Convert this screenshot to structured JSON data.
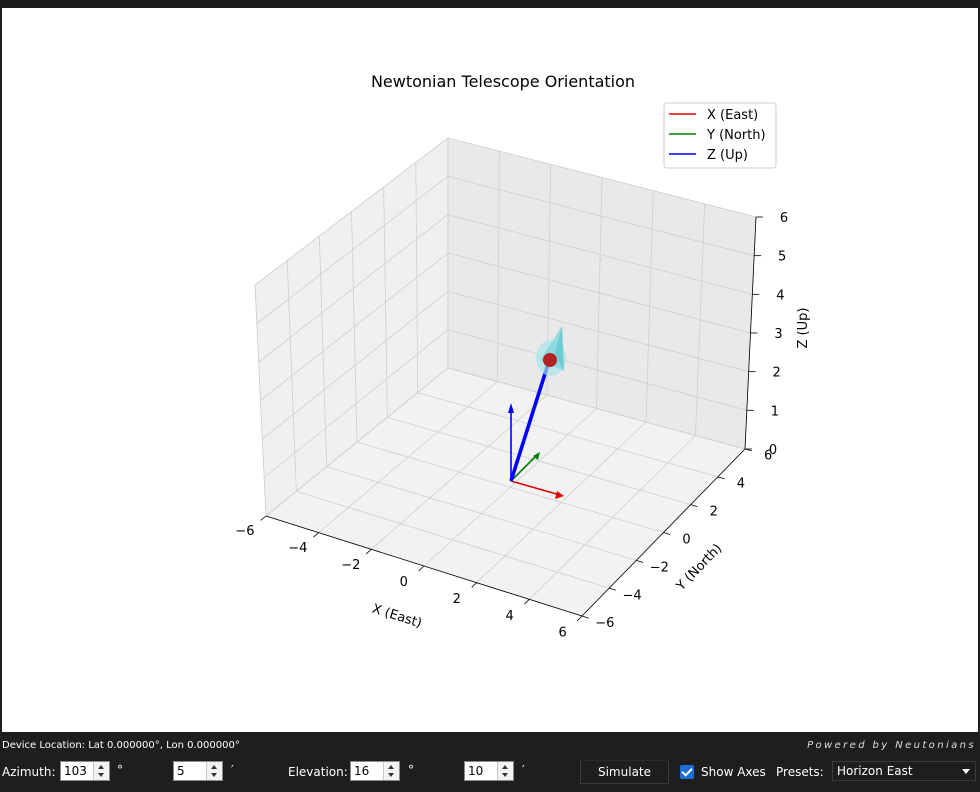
{
  "plot": {
    "title": "Newtonian Telescope Orientation",
    "xlabel": "X (East)",
    "ylabel": "Y (North)",
    "zlabel": "Z (Up)",
    "x_ticks": [
      "−6",
      "−4",
      "−2",
      "0",
      "2",
      "4",
      "6"
    ],
    "y_ticks": [
      "−6",
      "−4",
      "−2",
      "0",
      "2",
      "4",
      "6"
    ],
    "z_ticks": [
      "0",
      "1",
      "2",
      "3",
      "4",
      "5",
      "6"
    ],
    "legend": [
      {
        "label": "X (East)",
        "color": "#e00000"
      },
      {
        "label": "Y (North)",
        "color": "#008000"
      },
      {
        "label": "Z (Up)",
        "color": "#0000ff"
      }
    ]
  },
  "chart_data": {
    "type": "3d-vector",
    "title": "Newtonian Telescope Orientation",
    "xlabel": "X (East)",
    "ylabel": "Y (North)",
    "zlabel": "Z (Up)",
    "xlim": [
      -6,
      6
    ],
    "ylim": [
      -6,
      6
    ],
    "zlim": [
      0,
      6
    ],
    "grid": true,
    "legend_position": "top-right",
    "series": [
      {
        "name": "X (East)",
        "color": "#e00000",
        "from": [
          0,
          0,
          0
        ],
        "to": [
          2,
          0,
          0
        ]
      },
      {
        "name": "Y (North)",
        "color": "#008000",
        "from": [
          0,
          0,
          0
        ],
        "to": [
          0,
          2,
          0
        ]
      },
      {
        "name": "Z (Up)",
        "color": "#0000ff",
        "from": [
          0,
          0,
          0
        ],
        "to": [
          0,
          0,
          2
        ]
      }
    ],
    "telescope": {
      "from": [
        0,
        0,
        0
      ],
      "to": [
        3.0,
        1.0,
        1.9
      ],
      "tube_color": "#0000ff",
      "tip_color": "#b22222",
      "cone_color": "#7fd6dc"
    }
  },
  "status": {
    "device_location": "Device Location: Lat 0.000000°, Lon 0.000000°",
    "powered_by": "Powered by Neutonians"
  },
  "controls": {
    "azimuth_label": "Azimuth:",
    "azimuth_deg": "103",
    "azimuth_min": "5",
    "elevation_label": "Elevation:",
    "elevation_deg": "16",
    "elevation_min": "10",
    "deg_symbol": "°",
    "min_symbol": "′",
    "simulate_label": "Simulate",
    "show_axes_label": "Show Axes",
    "show_axes_checked": true,
    "presets_label": "Presets:",
    "preset_value": "Horizon East"
  }
}
